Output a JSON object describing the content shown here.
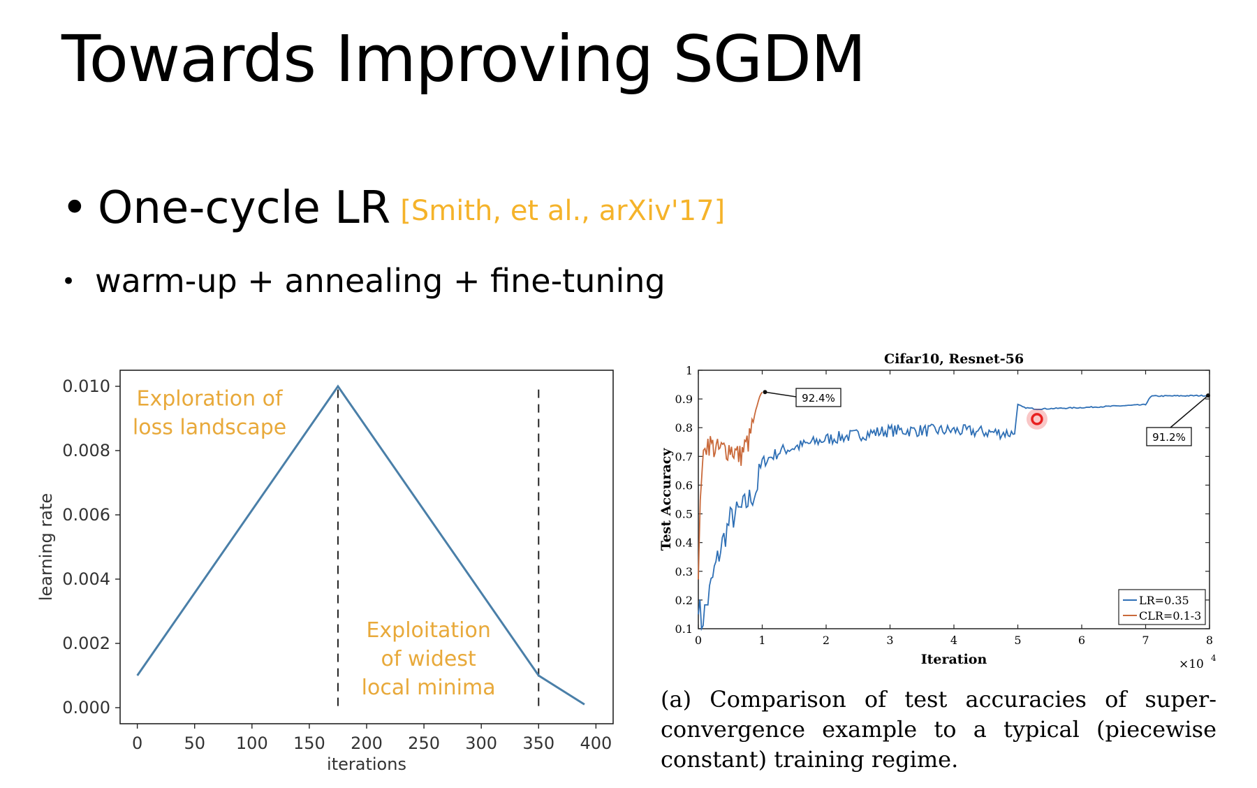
{
  "slide": {
    "title": "Towards Improving SGDM",
    "bullet1": {
      "dot": "•",
      "text": "One-cycle LR",
      "citation": "[Smith, et al., arXiv'17]"
    },
    "bullet2": {
      "dot": "•",
      "text": "warm-up + annealing + fine-tuning"
    },
    "caption": "(a) Comparison of test accuracies of super-convergence example to a typical (piecewise constant) training regime."
  },
  "colors": {
    "citation": "#f5b32a",
    "lr_line": "#4a7fa8",
    "annotation": "#e8a93a",
    "series_lr": "#2e6fb5",
    "series_clr": "#c9693a",
    "highlight": "#e82020"
  },
  "chart_data": [
    {
      "type": "line",
      "title": "",
      "xlabel": "iterations",
      "ylabel": "learning rate",
      "xlim": [
        -15,
        415
      ],
      "ylim": [
        -0.0005,
        0.0105
      ],
      "xticks": [
        0,
        50,
        100,
        150,
        200,
        250,
        300,
        350,
        400
      ],
      "xtick_labels": [
        "0",
        "50",
        "100",
        "150",
        "200",
        "250",
        "300",
        "350",
        "400"
      ],
      "yticks": [
        0.0,
        0.002,
        0.004,
        0.006,
        0.008,
        0.01
      ],
      "ytick_labels": [
        "0.000",
        "0.002",
        "0.004",
        "0.006",
        "0.008",
        "0.010"
      ],
      "series": [
        {
          "name": "learning rate",
          "x": [
            0,
            175,
            350,
            390
          ],
          "y": [
            0.001,
            0.01,
            0.001,
            0.0001
          ]
        }
      ],
      "vlines": [
        175,
        350
      ],
      "annotations": [
        {
          "lines": [
            "Exploration of",
            "loss landscape"
          ],
          "x": 63,
          "y": 0.0094
        },
        {
          "lines": [
            "Exploitation",
            "of widest",
            "local minima"
          ],
          "x": 254,
          "y": 0.0022
        }
      ]
    },
    {
      "type": "line",
      "title": "Cifar10, Resnet-56",
      "xlabel": "Iteration",
      "ylabel": "Test Accuracy",
      "x_multiplier": "×10",
      "x_multiplier_exp": "4",
      "xlim": [
        0,
        8
      ],
      "ylim": [
        0.1,
        1.0
      ],
      "xticks": [
        0,
        1,
        2,
        3,
        4,
        5,
        6,
        7,
        8
      ],
      "xtick_labels": [
        "0",
        "1",
        "2",
        "3",
        "4",
        "5",
        "6",
        "7",
        "8"
      ],
      "yticks": [
        0.1,
        0.2,
        0.3,
        0.4,
        0.5,
        0.6,
        0.7,
        0.8,
        0.9,
        1.0
      ],
      "ytick_labels": [
        "0.1",
        "0.2",
        "0.3",
        "0.4",
        "0.5",
        "0.6",
        "0.7",
        "0.8",
        "0.9",
        "1"
      ],
      "series": [
        {
          "name": "LR=0.35",
          "x": [
            0.0,
            0.05,
            0.15,
            0.25,
            0.35,
            0.5,
            0.7,
            0.9,
            1.0,
            1.3,
            2.0,
            3.0,
            4.0,
            4.95,
            5.0,
            5.1,
            5.3,
            6.0,
            7.0,
            7.05,
            7.1,
            8.0
          ],
          "y": [
            0.2,
            0.12,
            0.2,
            0.3,
            0.38,
            0.48,
            0.52,
            0.58,
            0.68,
            0.72,
            0.76,
            0.79,
            0.79,
            0.78,
            0.88,
            0.87,
            0.865,
            0.87,
            0.88,
            0.9,
            0.91,
            0.912
          ]
        },
        {
          "name": "CLR=0.1-3",
          "x": [
            0.0,
            0.03,
            0.08,
            0.15,
            0.3,
            0.5,
            0.65,
            0.8,
            0.9,
            0.98,
            1.0
          ],
          "y": [
            0.27,
            0.55,
            0.72,
            0.75,
            0.72,
            0.73,
            0.7,
            0.76,
            0.86,
            0.92,
            0.924
          ]
        }
      ],
      "callouts": [
        {
          "label": "92.4%",
          "x": 1.0,
          "y": 0.924
        },
        {
          "label": "91.2%",
          "x": 8.0,
          "y": 0.912
        }
      ],
      "legend_position": "bottom-right",
      "highlight_point": {
        "x": 5.3,
        "y": 0.83
      }
    }
  ]
}
